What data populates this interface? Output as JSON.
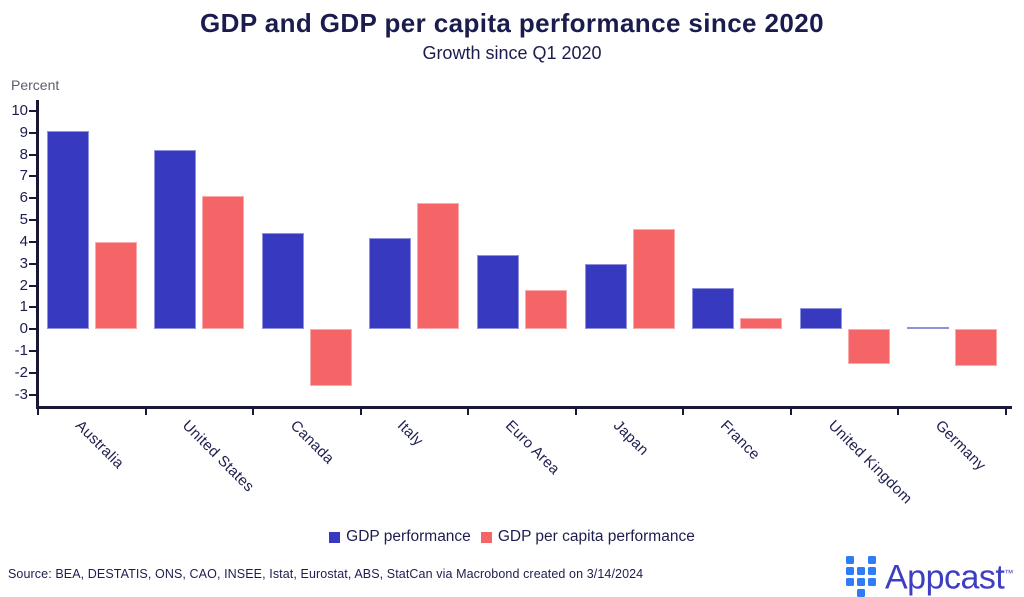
{
  "chart_data": {
    "type": "bar",
    "title": "GDP and GDP per capita performance since 2020",
    "subtitle": "Growth since Q1 2020",
    "ylabel": "Percent",
    "categories": [
      "Australia",
      "United States",
      "Canada",
      "Italy",
      "Euro Area",
      "Japan",
      "France",
      "United Kingdom",
      "Germany"
    ],
    "series": [
      {
        "name": "GDP performance",
        "color": "#3739bf",
        "values": [
          9.1,
          8.2,
          4.4,
          4.2,
          3.4,
          3.0,
          1.9,
          1.0,
          0.1
        ]
      },
      {
        "name": "GDP per capita performance",
        "color": "#f56567",
        "values": [
          4.0,
          6.1,
          -2.6,
          5.8,
          1.8,
          4.6,
          0.5,
          -1.6,
          -1.7
        ]
      }
    ],
    "ylim": [
      -3,
      10
    ],
    "y_tick_step": 1,
    "grid": false,
    "legend_position": "bottom",
    "x_tick_label_rotation_deg": 45
  },
  "footer": {
    "source_text": "Source: BEA, DESTATIS, ONS, CAO, INSEE, Istat, Eurostat, ABS, StatCan via Macrobond created on 3/14/2024"
  },
  "branding": {
    "logo_text": "Appcast",
    "trademark": "™"
  }
}
